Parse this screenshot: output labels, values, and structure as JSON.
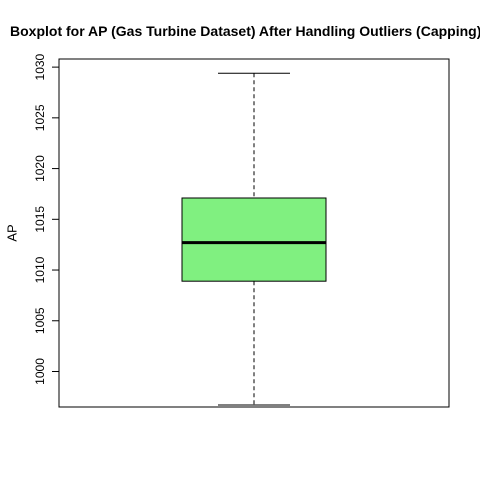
{
  "chart_data": {
    "type": "boxplot",
    "title": "Boxplot for AP (Gas Turbine Dataset) After Handling Outliers (Capping)",
    "xlabel": "",
    "ylabel": "AP",
    "ylim": [
      996.5,
      1030.8
    ],
    "yticks": [
      1000,
      1005,
      1010,
      1015,
      1020,
      1025,
      1030
    ],
    "box": {
      "whisker_low": 996.7,
      "q1": 1008.9,
      "median": 1012.7,
      "q3": 1017.1,
      "whisker_high": 1029.4
    },
    "box_color": "#80f080",
    "grid": false
  }
}
